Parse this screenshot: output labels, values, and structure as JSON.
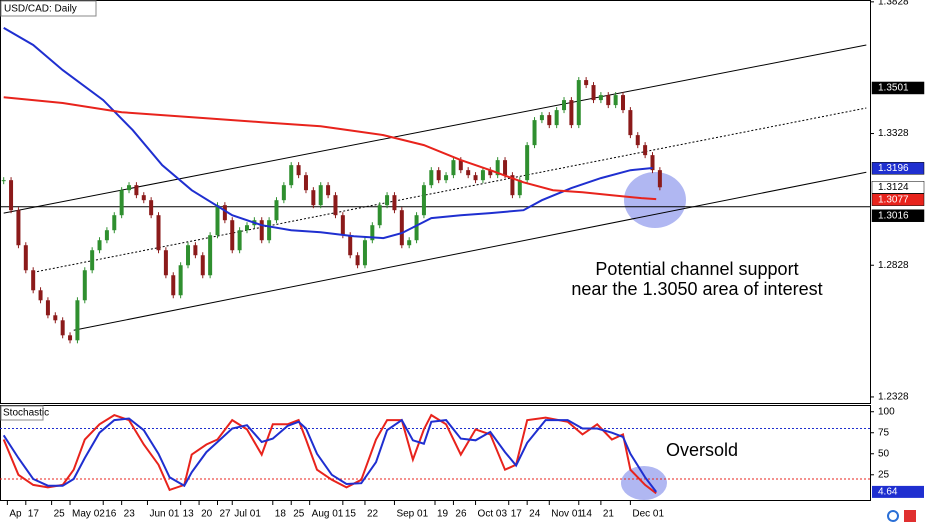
{
  "chart_data": [
    {
      "type": "candlestick",
      "title": "USD/CAD: Daily",
      "x": [
        0,
        2,
        4,
        6,
        8,
        10,
        12,
        14,
        16,
        18,
        20,
        22,
        24,
        26,
        28,
        30,
        32,
        34,
        36,
        38,
        40,
        42,
        44,
        46,
        48,
        50,
        52,
        54,
        56,
        58,
        60,
        62,
        64,
        66,
        68,
        70,
        72,
        74,
        76,
        78,
        80,
        82,
        84,
        86,
        88,
        90,
        92,
        94,
        96,
        98,
        100,
        102,
        104,
        106,
        108,
        110,
        112,
        114,
        116,
        118,
        120,
        122,
        124,
        126,
        128,
        130,
        132,
        134,
        136,
        138,
        140,
        142,
        144,
        146,
        148,
        150,
        152,
        154,
        156,
        158,
        160,
        162,
        164,
        166,
        168,
        170,
        172,
        174,
        176,
        178
      ],
      "values": [
        1.3151,
        1.3037,
        1.2904,
        1.2809,
        1.2733,
        1.2695,
        1.2638,
        1.2619,
        1.2562,
        1.2543,
        1.2695,
        1.2809,
        1.2885,
        1.2923,
        1.2961,
        1.3018,
        1.3113,
        1.3132,
        1.3094,
        1.3075,
        1.3018,
        1.2885,
        1.279,
        1.2714,
        1.2828,
        1.2904,
        1.2866,
        1.279,
        1.2942,
        1.3056,
        1.2999,
        1.2885,
        1.2961,
        1.298,
        1.2999,
        1.2923,
        1.2999,
        1.3075,
        1.3132,
        1.3208,
        1.317,
        1.3113,
        1.3056,
        1.3132,
        1.3094,
        1.3018,
        1.2942,
        1.2866,
        1.2828,
        1.2923,
        1.298,
        1.3056,
        1.3094,
        1.3037,
        1.2904,
        1.2923,
        1.3018,
        1.3132,
        1.3189,
        1.3151,
        1.317,
        1.3227,
        1.3189,
        1.317,
        1.3151,
        1.3189,
        1.317,
        1.3227,
        1.317,
        1.3094,
        1.3151,
        1.3284,
        1.3379,
        1.3398,
        1.336,
        1.3417,
        1.3455,
        1.336,
        1.3531,
        1.3512,
        1.3455,
        1.3474,
        1.3436,
        1.3474,
        1.3417,
        1.3322,
        1.3284,
        1.3246,
        1.3189,
        1.3124
      ],
      "up_color": "#2f8f2f",
      "down_color": "#8b1a1a",
      "xlim": [
        -1,
        235
      ],
      "ylim": [
        1.2305,
        1.3835
      ],
      "yticks": [
        1.2328,
        1.2828,
        1.3328,
        1.3828
      ],
      "xticks": [
        {
          "value": 1,
          "label": "Ap"
        },
        {
          "value": 6,
          "label": "17"
        },
        {
          "value": 13,
          "label": "25"
        },
        {
          "value": 18,
          "label": "May 02"
        },
        {
          "value": 27,
          "label": "16"
        },
        {
          "value": 32,
          "label": "23"
        },
        {
          "value": 39,
          "label": "Jun 01"
        },
        {
          "value": 48,
          "label": "13"
        },
        {
          "value": 53,
          "label": "20"
        },
        {
          "value": 58,
          "label": "27"
        },
        {
          "value": 62,
          "label": "Jul 01"
        },
        {
          "value": 73,
          "label": "18"
        },
        {
          "value": 78,
          "label": "25"
        },
        {
          "value": 83,
          "label": "Aug 01"
        },
        {
          "value": 92,
          "label": "15"
        },
        {
          "value": 98,
          "label": "22"
        },
        {
          "value": 106,
          "label": "Sep 01"
        },
        {
          "value": 117,
          "label": "19"
        },
        {
          "value": 122,
          "label": "26"
        },
        {
          "value": 128,
          "label": "Oct 03"
        },
        {
          "value": 137,
          "label": "17"
        },
        {
          "value": 142,
          "label": "24"
        },
        {
          "value": 148,
          "label": "Nov 01"
        },
        {
          "value": 156,
          "label": "14"
        },
        {
          "value": 162,
          "label": "21"
        },
        {
          "value": 170,
          "label": "Dec 01"
        }
      ],
      "series": [
        {
          "color": "#1f2fd0",
          "x": [
            0,
            8,
            16,
            27,
            35,
            43,
            51,
            62,
            70,
            78,
            86,
            95,
            103,
            108,
            116,
            124,
            132,
            141,
            146,
            154,
            162,
            170,
            176
          ],
          "values": [
            1.3729,
            1.3664,
            1.3569,
            1.3455,
            1.3341,
            1.3208,
            1.3113,
            1.3018,
            1.298,
            1.2961,
            1.2953,
            1.2938,
            1.2931,
            1.295,
            1.3007,
            1.3018,
            1.3026,
            1.3037,
            1.3075,
            1.3121,
            1.3159,
            1.3189,
            1.3197
          ]
        },
        {
          "color": "#e8231c",
          "x": [
            0,
            16,
            32,
            54,
            70,
            86,
            103,
            114,
            124,
            132,
            141,
            149,
            157,
            165,
            173,
            177
          ],
          "values": [
            1.3466,
            1.3444,
            1.3409,
            1.3387,
            1.3371,
            1.3356,
            1.3322,
            1.3284,
            1.3227,
            1.3189,
            1.3143,
            1.3113,
            1.3105,
            1.3094,
            1.3083,
            1.3079
          ]
        }
      ],
      "channel": [
        {
          "x": [
            0,
            234
          ],
          "values": [
            1.3026,
            1.3664
          ],
          "dashed": false
        },
        {
          "x": [
            8,
            234
          ],
          "values": [
            1.2801,
            1.3425
          ],
          "dashed": true
        },
        {
          "x": [
            19,
            234
          ],
          "values": [
            1.2581,
            1.3181
          ],
          "dashed": false
        }
      ],
      "hline": 1.305,
      "price_labels": [
        {
          "value": 1.3501,
          "bg": "#000000",
          "fg": "#ffffff"
        },
        {
          "value": 1.3196,
          "bg": "#1f2fd0",
          "fg": "#ffffff"
        },
        {
          "value": 1.3124,
          "bg": "#ffffff",
          "fg": "#000000"
        },
        {
          "value": 1.3077,
          "bg": "#e8231c",
          "fg": "#ffffff"
        },
        {
          "value": 1.3016,
          "bg": "#000000",
          "fg": "#ffffff"
        }
      ],
      "annotation": [
        "Potential channel support",
        "near the 1.3050 area of interest"
      ]
    },
    {
      "type": "line",
      "title": "Stochastic",
      "x": [
        0,
        4,
        8,
        12,
        16,
        19,
        22,
        26,
        30,
        34,
        38,
        42,
        45,
        49,
        51,
        55,
        58,
        62,
        66,
        70,
        73,
        77,
        80,
        82,
        85,
        89,
        93,
        97,
        101,
        104,
        108,
        111,
        114,
        116,
        120,
        124,
        128,
        132,
        136,
        139,
        142,
        147,
        153,
        157,
        161,
        165,
        168,
        170,
        174,
        177
      ],
      "series": [
        {
          "color": "#e8231c",
          "values": [
            67,
            25,
            13,
            10,
            13,
            31,
            67,
            85,
            96,
            90,
            61,
            37,
            7,
            13,
            49,
            61,
            67,
            90,
            79,
            49,
            85,
            85,
            90,
            67,
            31,
            19,
            10,
            19,
            67,
            90,
            90,
            43,
            79,
            96,
            85,
            49,
            79,
            73,
            31,
            37,
            90,
            93,
            88,
            73,
            85,
            67,
            73,
            31,
            13,
            3
          ]
        },
        {
          "color": "#1f2fd0",
          "values": [
            72,
            45,
            20,
            12,
            12,
            20,
            45,
            75,
            90,
            92,
            78,
            50,
            22,
            12,
            28,
            52,
            64,
            80,
            84,
            64,
            68,
            83,
            88,
            80,
            50,
            25,
            14,
            15,
            40,
            78,
            90,
            66,
            62,
            88,
            90,
            68,
            66,
            76,
            52,
            36,
            63,
            90,
            90,
            80,
            80,
            75,
            70,
            50,
            22,
            4.64
          ]
        }
      ],
      "ylim": [
        -5,
        108
      ],
      "yticks": [
        25,
        50,
        75,
        100
      ],
      "levels": [
        {
          "value": 80,
          "color": "#1f2fd0"
        },
        {
          "value": 20,
          "color": "#e8231c"
        }
      ],
      "last_label": 4.64,
      "annotation": "Oversold"
    }
  ]
}
